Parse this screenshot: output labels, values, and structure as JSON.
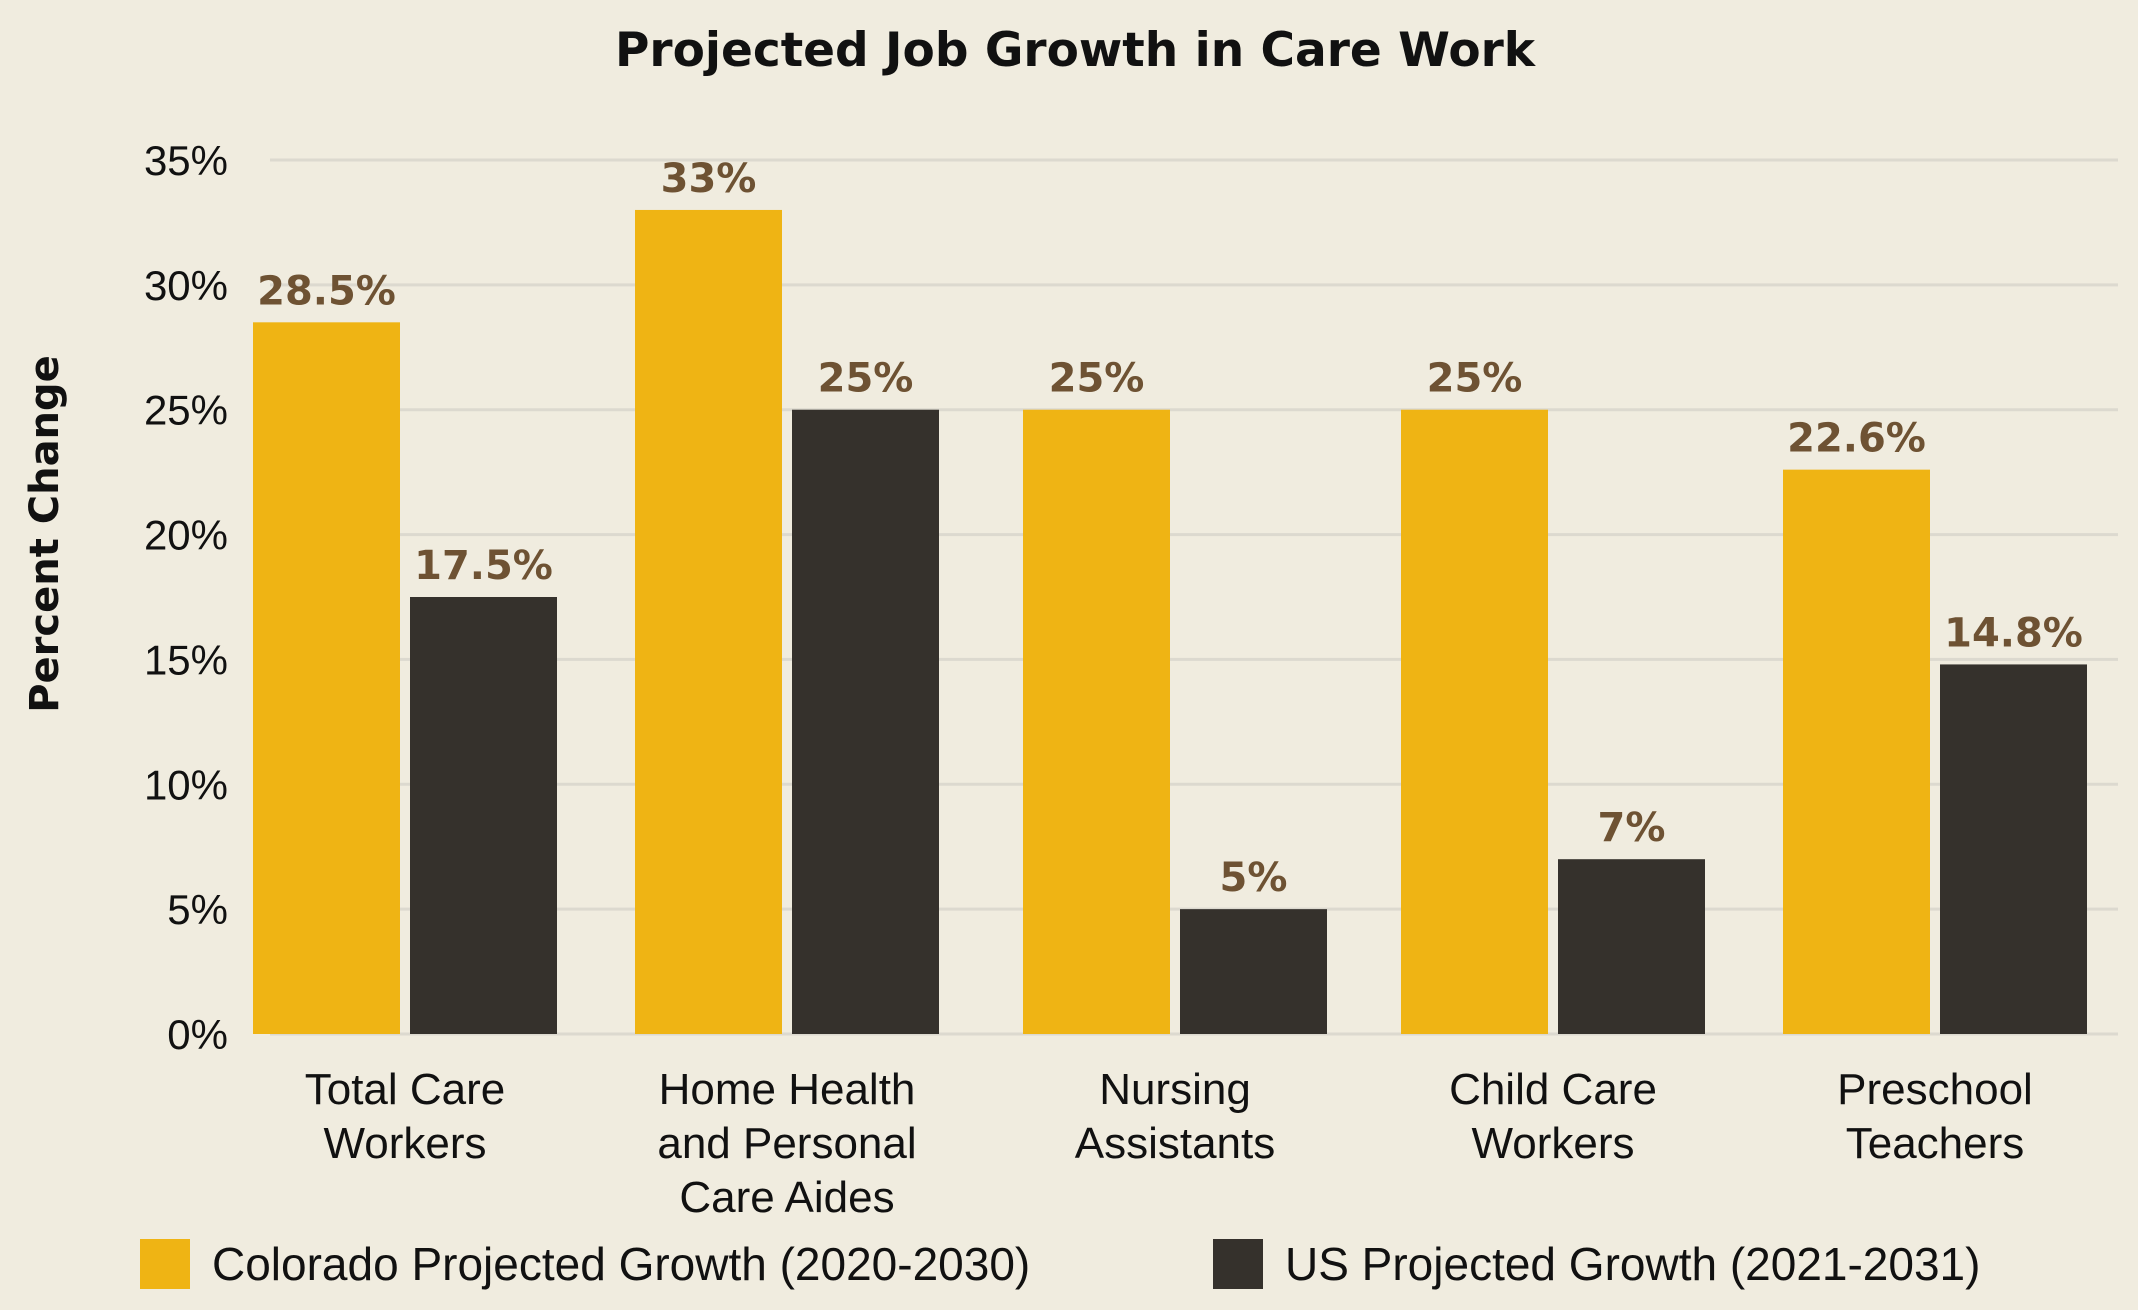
{
  "chart_data": {
    "type": "bar",
    "title": "Projected Job Growth in Care Work",
    "ylabel": "Percent Change",
    "xlabel": "",
    "ylim": [
      0,
      35
    ],
    "yticks": [
      "0%",
      "5%",
      "10%",
      "15%",
      "20%",
      "25%",
      "30%",
      "35%"
    ],
    "ytick_values": [
      0,
      5,
      10,
      15,
      20,
      25,
      30,
      35
    ],
    "grid": true,
    "legend_position": "bottom",
    "categories": [
      [
        "Total Care",
        "Workers"
      ],
      [
        "Home Health",
        "and Personal",
        "Care Aides"
      ],
      [
        "Nursing",
        "Assistants"
      ],
      [
        "Child Care",
        "Workers"
      ],
      [
        "Preschool",
        "Teachers"
      ]
    ],
    "series": [
      {
        "name": "Colorado Projected Growth (2020-2030)",
        "color": "#efb414",
        "values": [
          28.5,
          33,
          25,
          25,
          22.6
        ],
        "labels": [
          "28.5%",
          "33%",
          "25%",
          "25%",
          "22.6%"
        ]
      },
      {
        "name": "US Projected Growth (2021-2031)",
        "color": "#35312c",
        "values": [
          17.5,
          25,
          5,
          7,
          14.8
        ],
        "labels": [
          "17.5%",
          "25%",
          "5%",
          "7%",
          "14.8%"
        ]
      }
    ]
  }
}
